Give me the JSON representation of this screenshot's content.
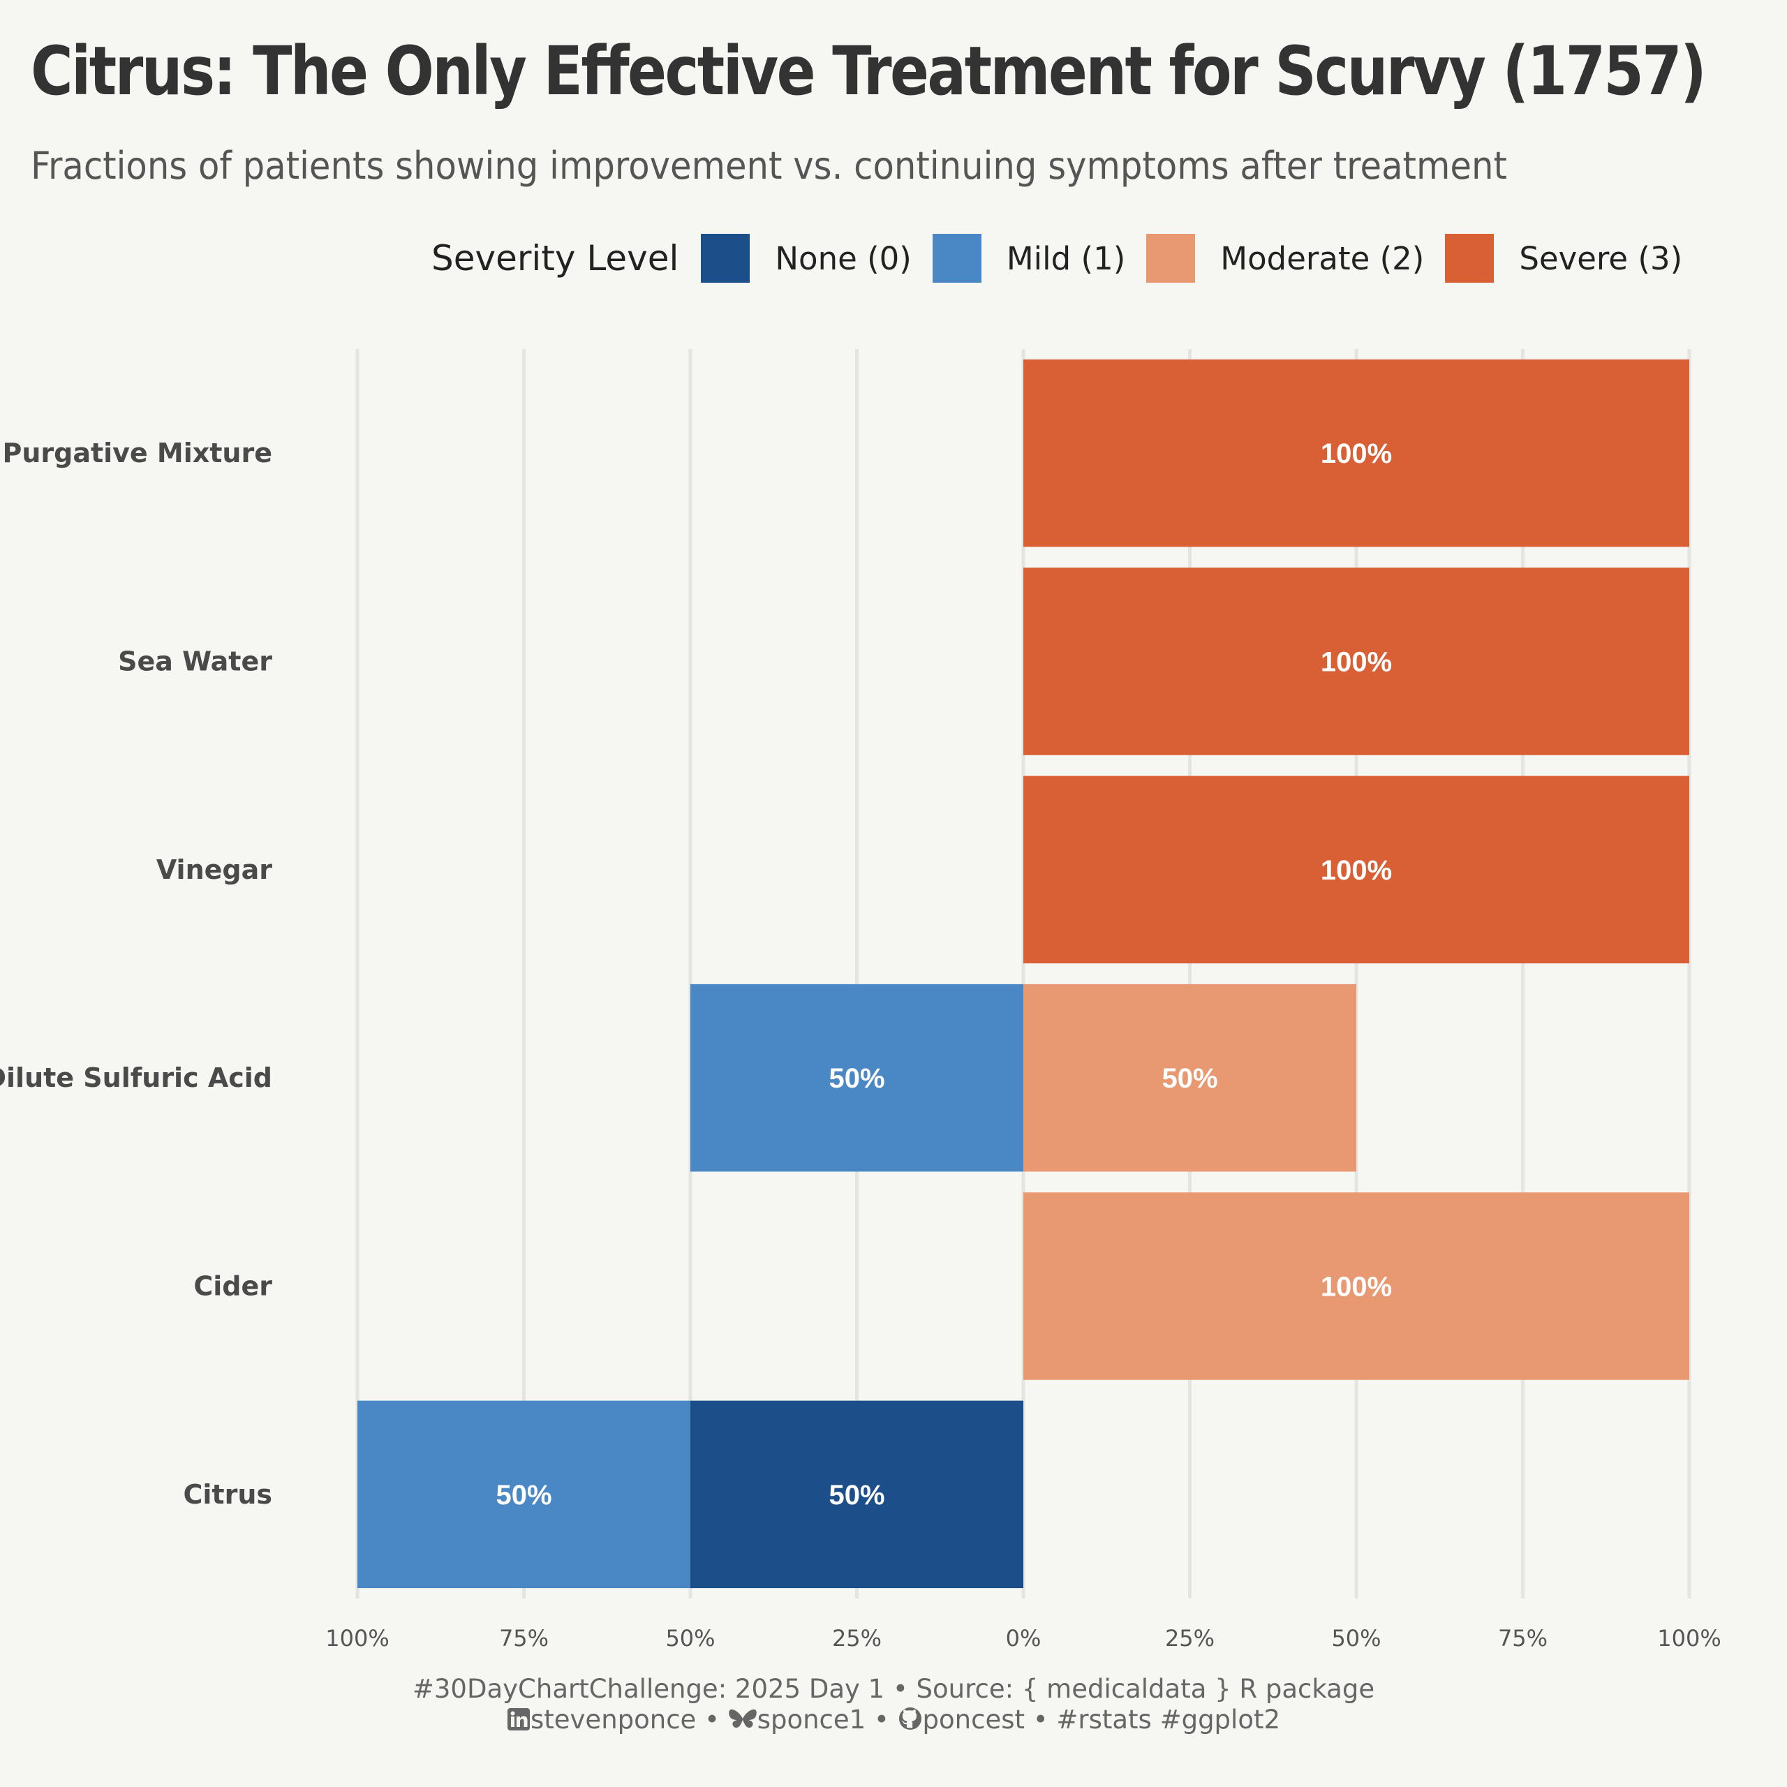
{
  "title": "Citrus: The Only Effective Treatment for Scurvy (1757)",
  "subtitle": "Fractions of patients showing improvement vs. continuing symptoms after treatment",
  "legend": {
    "title": "Severity Level",
    "placement": "top",
    "items": [
      {
        "label": "None (0)",
        "color": "#1c4f8a"
      },
      {
        "label": "Mild (1)",
        "color": "#4a87c5"
      },
      {
        "label": "Moderate (2)",
        "color": "#e89971"
      },
      {
        "label": "Severe (3)",
        "color": "#d95f35"
      }
    ]
  },
  "chart_data": {
    "type": "bar",
    "orientation": "horizontal",
    "stacking": "diverging",
    "categories": [
      "Purgative Mixture",
      "Sea Water",
      "Vinegar",
      "Dilute Sulfuric Acid",
      "Cider",
      "Citrus"
    ],
    "series": [
      {
        "name": "None (0)",
        "side": "left",
        "values": [
          0,
          0,
          0,
          0,
          0,
          50
        ]
      },
      {
        "name": "Mild (1)",
        "side": "left",
        "values": [
          0,
          0,
          0,
          50,
          0,
          50
        ]
      },
      {
        "name": "Moderate (2)",
        "side": "right",
        "values": [
          0,
          0,
          0,
          50,
          100,
          0
        ]
      },
      {
        "name": "Severe (3)",
        "side": "right",
        "values": [
          100,
          100,
          100,
          0,
          0,
          0
        ]
      }
    ],
    "xlim": [
      -100,
      100
    ],
    "xticks": [
      -100,
      -75,
      -50,
      -25,
      0,
      25,
      50,
      75,
      100
    ],
    "xtick_labels": [
      "100%",
      "75%",
      "50%",
      "25%",
      "0%",
      "25%",
      "50%",
      "75%",
      "100%"
    ],
    "grid": "vertical",
    "data_labels": true
  },
  "caption": {
    "line1": "#30DayChartChallenge:  2025 Day 1 • Source: { medicaldata } R package",
    "linkedin": "stevenponce",
    "sep1": " • ",
    "bluesky": "sponce1",
    "sep2": " • ",
    "github": "poncest",
    "tags": " • #rstats #ggplot2",
    "icons": [
      "linkedin-icon",
      "bluesky-icon",
      "github-icon"
    ]
  }
}
